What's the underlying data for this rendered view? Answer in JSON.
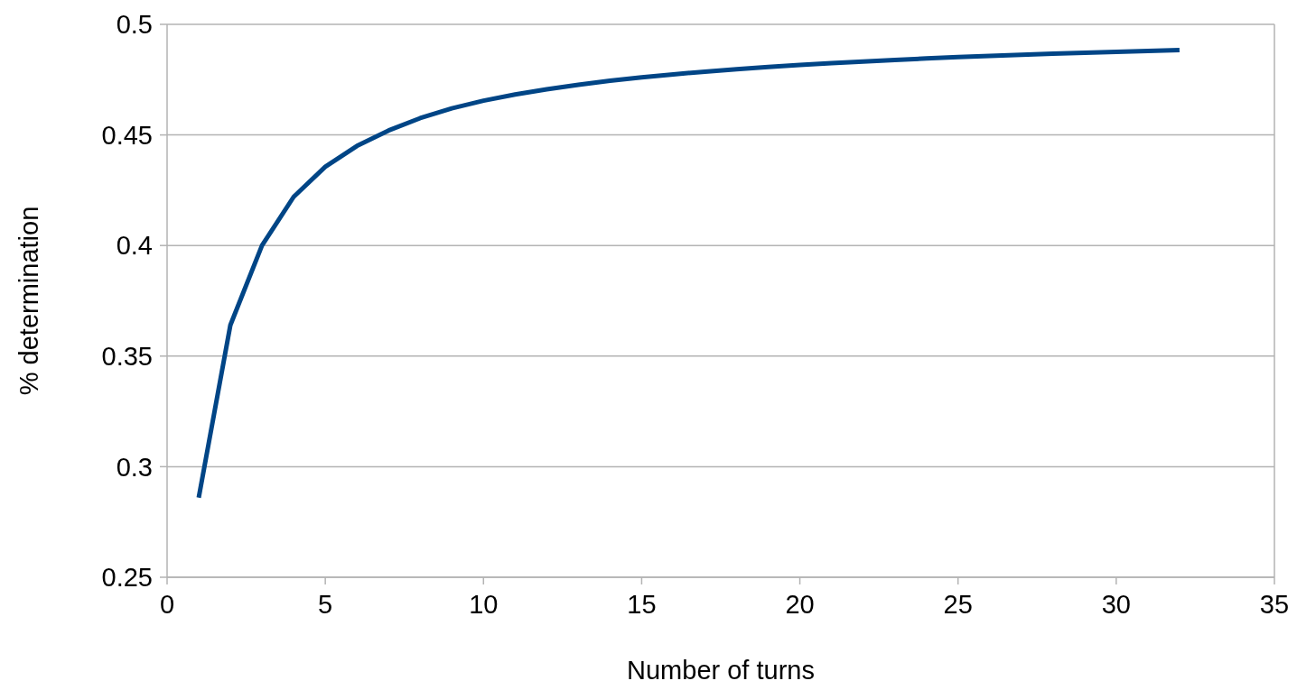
{
  "chart_data": {
    "type": "line",
    "xlabel": "Number of turns",
    "ylabel": "% determination",
    "x": [
      1,
      2,
      3,
      4,
      5,
      6,
      7,
      8,
      9,
      10,
      11,
      12,
      13,
      14,
      15,
      16,
      17,
      18,
      19,
      20,
      21,
      22,
      23,
      24,
      25,
      26,
      27,
      28,
      29,
      30,
      31,
      32
    ],
    "series": [
      {
        "color": "#004586",
        "values": [
          0.286,
          0.364,
          0.4,
          0.422,
          0.4356,
          0.445,
          0.452,
          0.4576,
          0.462,
          0.4655,
          0.4683,
          0.4706,
          0.4727,
          0.4745,
          0.476,
          0.4774,
          0.4786,
          0.4797,
          0.4807,
          0.4816,
          0.4825,
          0.4832,
          0.4839,
          0.4846,
          0.4852,
          0.4857,
          0.4862,
          0.4867,
          0.4872,
          0.4876,
          0.488,
          0.4884
        ]
      }
    ],
    "xlim": [
      0,
      35
    ],
    "xticks": [
      0,
      5,
      10,
      15,
      20,
      25,
      30,
      35
    ],
    "ylim": [
      0.25,
      0.5
    ],
    "yticks": [
      0.25,
      0.3,
      0.35,
      0.4,
      0.45,
      0.5
    ],
    "grid": "y",
    "marker": "none",
    "line_style": "solid"
  }
}
